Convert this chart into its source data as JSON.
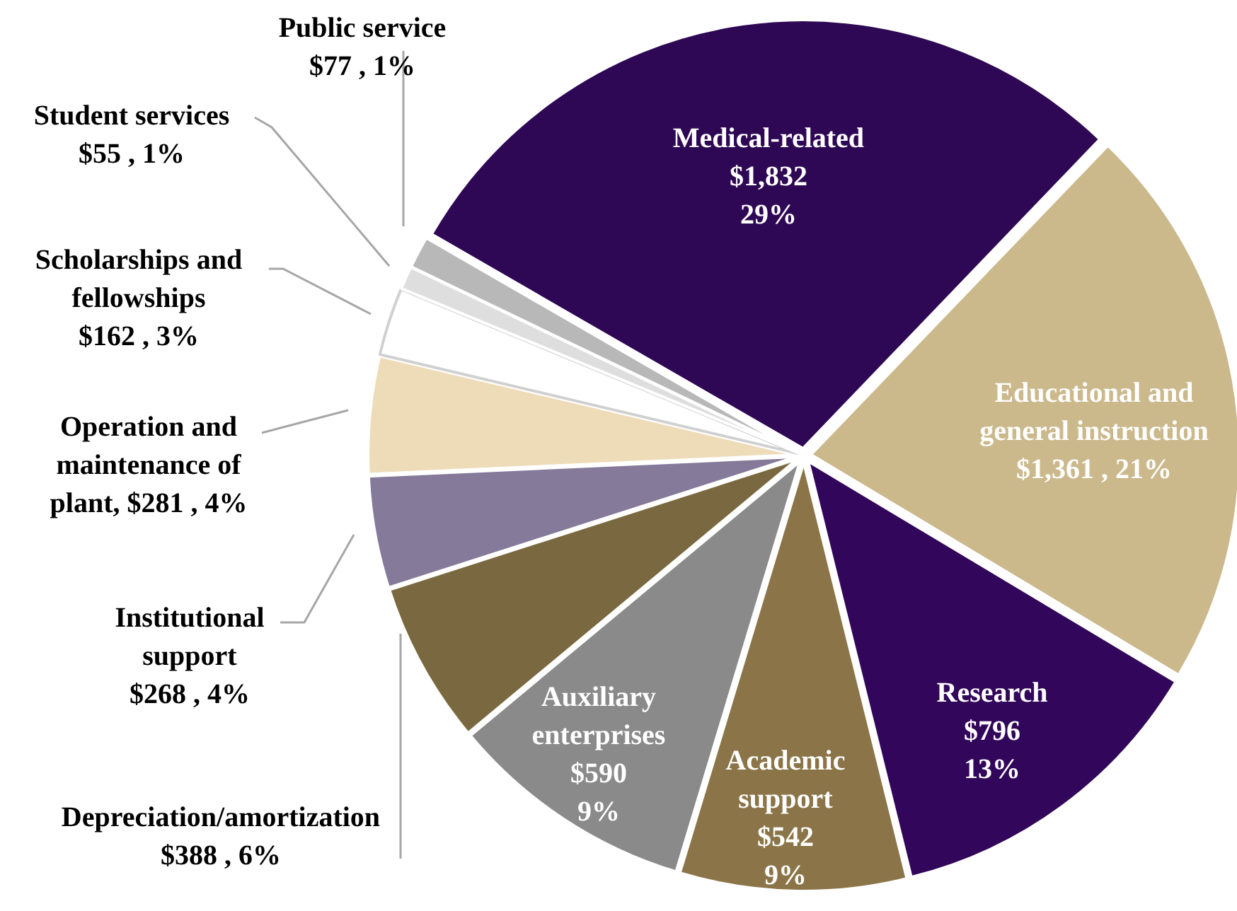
{
  "chart_data": {
    "type": "pie",
    "categories": [
      "Medical-related",
      "Educational and general instruction",
      "Research",
      "Academic support",
      "Auxiliary enterprises",
      "Depreciation/amortization",
      "Institutional support",
      "Operation and maintenance of plant",
      "Scholarships and fellowships",
      "Student services",
      "Public service"
    ],
    "values": [
      1832,
      1361,
      796,
      542,
      590,
      388,
      268,
      281,
      162,
      55,
      77
    ],
    "value_labels": [
      "$1,832 29%",
      "$1,361 , 21%",
      "$796 13%",
      "$542 9%",
      "$590 9%",
      "$388 , 6%",
      "$268 , 4%",
      "$281 , 4%",
      "$162 , 3%",
      "$55 , 1%",
      "$77 , 1%"
    ],
    "colors": [
      "#2e0854",
      "#cbb98c",
      "#32065a",
      "#8b7548",
      "#8a8a8a",
      "#7a6840",
      "#857a9a",
      "#eedcb8",
      "#ffffff",
      "#dedede",
      "#b8b8b8"
    ]
  }
}
